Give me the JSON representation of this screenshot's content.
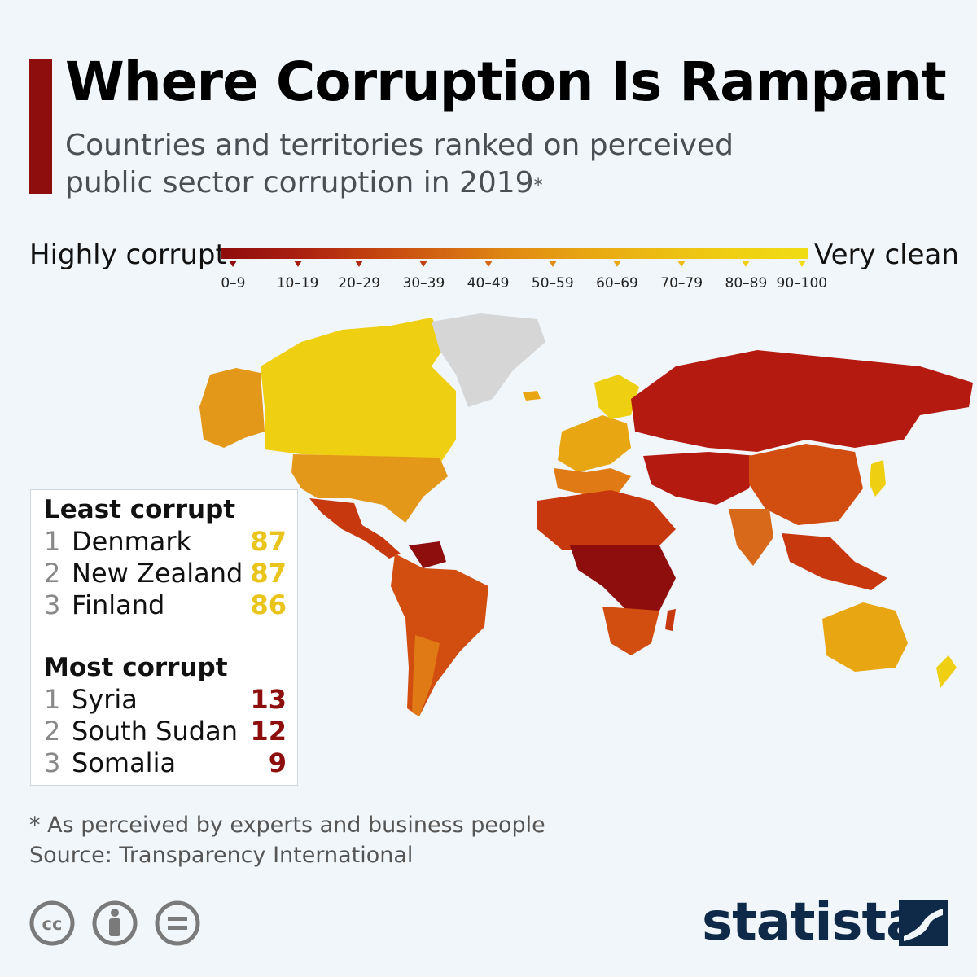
{
  "title": "Where Corruption Is Rampant",
  "subtitle": "Countries and territories ranked on perceived public sector corruption in 2019",
  "subtitle_mark": "*",
  "legend": {
    "low_label": "Highly corrupt",
    "high_label": "Very clean",
    "bins": [
      "0–9",
      "10–19",
      "20–29",
      "30–39",
      "40–49",
      "50–59",
      "60–69",
      "70–79",
      "80–89",
      "90–100"
    ],
    "colors": [
      "#8e0d0d",
      "#a91e10",
      "#b52a10",
      "#c2400f",
      "#d36513",
      "#e08b12",
      "#e8a612",
      "#ecbc13",
      "#efcf12",
      "#f0dc14"
    ]
  },
  "least_corrupt": {
    "heading": "Least corrupt",
    "items": [
      {
        "rank": "1",
        "name": "Denmark",
        "score": "87"
      },
      {
        "rank": "2",
        "name": "New Zealand",
        "score": "87"
      },
      {
        "rank": "3",
        "name": "Finland",
        "score": "86"
      }
    ],
    "score_color": "#e9c41a"
  },
  "most_corrupt": {
    "heading": "Most corrupt",
    "items": [
      {
        "rank": "1",
        "name": "Syria",
        "score": "13"
      },
      {
        "rank": "2",
        "name": "South Sudan",
        "score": "12"
      },
      {
        "rank": "3",
        "name": "Somalia",
        "score": "9"
      }
    ],
    "score_color": "#8e0d0d"
  },
  "footnote": "* As perceived by experts and business people",
  "source": "Source: Transparency International",
  "brand": "statista",
  "colors": {
    "accent": "#8e0d0d",
    "background": "#f1f6fa",
    "no_data": "#d6d6d6",
    "brand": "#0f2948"
  },
  "icons": [
    "cc-icon",
    "by-icon",
    "nd-icon"
  ]
}
